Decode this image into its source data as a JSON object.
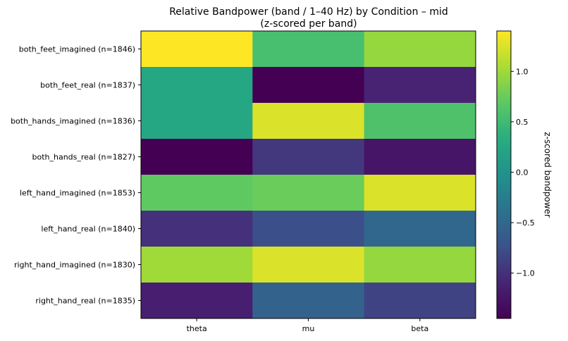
{
  "chart_data": {
    "type": "heatmap",
    "title": "Relative Bandpower (band / 1–40 Hz) by Condition – mid",
    "subtitle": "(z-scored per band)",
    "xlabel": "",
    "ylabel": "",
    "columns": [
      "theta",
      "mu",
      "beta"
    ],
    "rows": [
      "both_feet_imagined (n=1846)",
      "both_feet_real (n=1837)",
      "both_hands_imagined (n=1836)",
      "both_hands_real (n=1827)",
      "left_hand_imagined (n=1853)",
      "left_hand_real (n=1840)",
      "right_hand_imagined (n=1830)",
      "right_hand_real (n=1835)"
    ],
    "values": [
      [
        1.4,
        0.55,
        0.95
      ],
      [
        0.25,
        -1.45,
        -1.1
      ],
      [
        0.25,
        1.25,
        0.6
      ],
      [
        -1.45,
        -0.95,
        -1.25
      ],
      [
        0.7,
        0.75,
        1.25
      ],
      [
        -1.0,
        -0.75,
        -0.5
      ],
      [
        1.0,
        1.25,
        0.95
      ],
      [
        -1.15,
        -0.55,
        -0.85
      ]
    ],
    "colormap": "viridis",
    "colorbar": {
      "label": "z-scored bandpower",
      "vmin": -1.45,
      "vmax": 1.4,
      "ticks": [
        -1.0,
        -0.5,
        0.0,
        0.5,
        1.0
      ],
      "tick_labels": [
        "−1.0",
        "−0.5",
        "0.0",
        "0.5",
        "1.0"
      ]
    },
    "grid": false
  }
}
